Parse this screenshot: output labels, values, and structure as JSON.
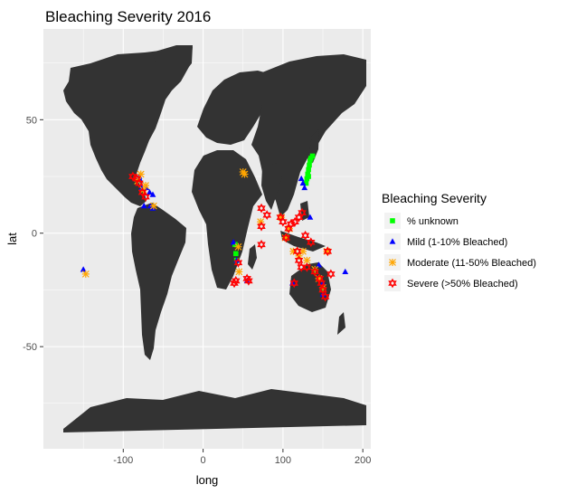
{
  "chart_data": {
    "type": "scatter",
    "title": "Bleaching Severity  2016",
    "xlabel": "long",
    "ylabel": "lat",
    "xlim": [
      -200,
      210
    ],
    "ylim": [
      -95,
      90
    ],
    "xticks": [
      -100,
      0,
      100,
      200
    ],
    "yticks": [
      -50,
      0,
      50
    ],
    "grid": true,
    "legend": {
      "title": "Bleaching Severity",
      "position": "right"
    },
    "background_map": "world land masses (dark grey)",
    "colors": {
      "panel": "#ebebeb",
      "grid": "#ffffff",
      "land": "#333333",
      "unknown": "#00ff00",
      "mild": "#0000ff",
      "moderate": "#ffa500",
      "severe": "#ff0000"
    },
    "series": [
      {
        "name": "% unknown",
        "shape": "square",
        "points": [
          [
            129,
            22
          ],
          [
            130,
            24
          ],
          [
            131,
            26
          ],
          [
            132,
            28
          ],
          [
            133,
            30
          ],
          [
            134,
            32
          ],
          [
            135,
            33
          ],
          [
            137,
            34
          ],
          [
            132,
            25
          ],
          [
            40,
            -5
          ],
          [
            41,
            -9
          ],
          [
            42,
            -12
          ]
        ]
      },
      {
        "name": "Mild (1-10% Bleached)",
        "shape": "triangle",
        "points": [
          [
            -150,
            -16
          ],
          [
            -80,
            25
          ],
          [
            -78,
            23
          ],
          [
            -77,
            20
          ],
          [
            -71,
            20
          ],
          [
            -67,
            18
          ],
          [
            -63,
            17
          ],
          [
            -74,
            12
          ],
          [
            -63,
            11
          ],
          [
            -66,
            12
          ],
          [
            123,
            24
          ],
          [
            125,
            22
          ],
          [
            127,
            20
          ],
          [
            134,
            7
          ],
          [
            145,
            -14
          ],
          [
            150,
            -22
          ],
          [
            178,
            -17
          ],
          [
            55,
            -21
          ],
          [
            42,
            -12
          ],
          [
            38,
            -4
          ],
          [
            112,
            -22
          ],
          [
            150,
            -27
          ]
        ]
      },
      {
        "name": "Moderate (11-50% Bleached)",
        "shape": "asterisk",
        "points": [
          [
            -147,
            -18
          ],
          [
            -78,
            26
          ],
          [
            -82,
            23
          ],
          [
            -75,
            19
          ],
          [
            -72,
            21
          ],
          [
            -62,
            12
          ],
          [
            44,
            -6
          ],
          [
            45,
            -17
          ],
          [
            50,
            27
          ],
          [
            52,
            26
          ],
          [
            72,
            5
          ],
          [
            98,
            7
          ],
          [
            103,
            -2
          ],
          [
            108,
            2
          ],
          [
            113,
            -8
          ],
          [
            120,
            -10
          ],
          [
            125,
            -8
          ],
          [
            130,
            -12
          ],
          [
            140,
            -16
          ],
          [
            145,
            -20
          ],
          [
            150,
            -24
          ],
          [
            155,
            -8
          ]
        ]
      },
      {
        "name": "Severe (>50% Bleached)",
        "shape": "star",
        "points": [
          [
            -88,
            25
          ],
          [
            -83,
            24
          ],
          [
            -80,
            22
          ],
          [
            -76,
            18
          ],
          [
            -72,
            16
          ],
          [
            44,
            -13
          ],
          [
            39,
            -22
          ],
          [
            41,
            -21
          ],
          [
            55,
            -20
          ],
          [
            57,
            -21
          ],
          [
            73,
            11
          ],
          [
            73,
            3
          ],
          [
            73,
            -5
          ],
          [
            80,
            8
          ],
          [
            97,
            7
          ],
          [
            100,
            5
          ],
          [
            104,
            -2
          ],
          [
            107,
            2
          ],
          [
            110,
            4
          ],
          [
            115,
            5
          ],
          [
            120,
            7
          ],
          [
            124,
            9
          ],
          [
            128,
            -1
          ],
          [
            135,
            -4
          ],
          [
            118,
            -8
          ],
          [
            120,
            -12
          ],
          [
            123,
            -15
          ],
          [
            130,
            -15
          ],
          [
            140,
            -17
          ],
          [
            146,
            -20
          ],
          [
            148,
            -22
          ],
          [
            150,
            -25
          ],
          [
            153,
            -28
          ],
          [
            114,
            -22
          ],
          [
            160,
            -18
          ],
          [
            156,
            -8
          ]
        ]
      }
    ]
  }
}
